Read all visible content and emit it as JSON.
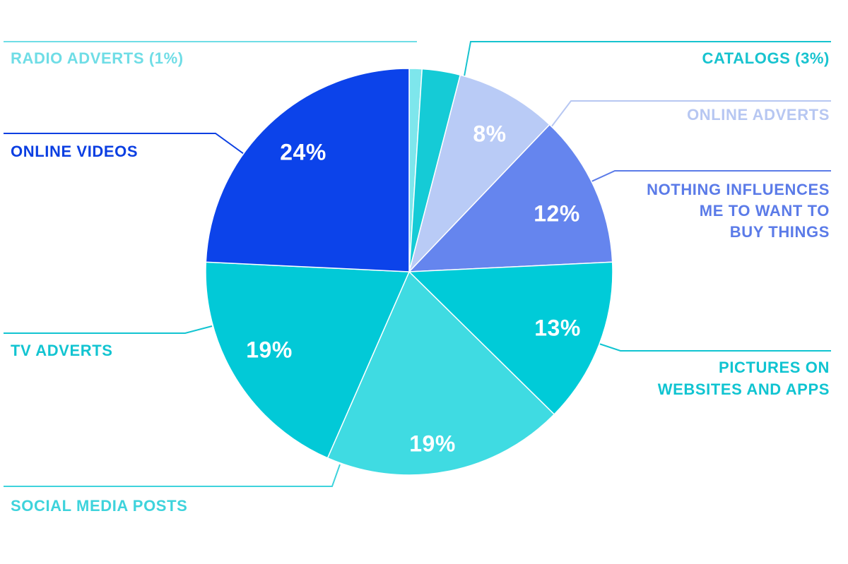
{
  "chart_data": {
    "type": "pie",
    "title": "",
    "start": "12 o'clock",
    "direction": "clockwise",
    "slices": [
      {
        "name": "RADIO ADVERTS (1%)",
        "lines": [
          "RADIO ADVERTS (1%)"
        ],
        "value": 1,
        "value_label": "",
        "color": "#7ee6ec"
      },
      {
        "name": "CATALOGS (3%)",
        "lines": [
          "CATALOGS (3%)"
        ],
        "value": 3,
        "value_label": "",
        "color": "#15cbd6"
      },
      {
        "name": "ONLINE ADVERTS",
        "lines": [
          "ONLINE ADVERTS"
        ],
        "value": 8,
        "value_label": "8%",
        "color": "#b9cbf6"
      },
      {
        "name": "NOTHING INFLUENCES ME TO WANT TO BUY THINGS",
        "lines": [
          "NOTHING INFLUENCES",
          "ME TO WANT TO",
          "BUY THINGS"
        ],
        "value": 12,
        "value_label": "12%",
        "color": "#6585ee"
      },
      {
        "name": "PICTURES ON WEBSITES AND APPS",
        "lines": [
          "PICTURES ON",
          "WEBSITES AND APPS"
        ],
        "value": 13,
        "value_label": "13%",
        "color": "#00cbd8"
      },
      {
        "name": "SOCIAL MEDIA POSTS",
        "lines": [
          "SOCIAL MEDIA POSTS"
        ],
        "value": 19,
        "value_label": "19%",
        "color": "#3fdbe2"
      },
      {
        "name": "TV ADVERTS",
        "lines": [
          "TV ADVERTS"
        ],
        "value": 19,
        "value_label": "19%",
        "color": "#02c9d7"
      },
      {
        "name": "ONLINE VIDEOS",
        "lines": [
          "ONLINE VIDEOS"
        ],
        "value": 24,
        "value_label": "24%",
        "color": "#0c43ea"
      }
    ],
    "label_colors": {
      "RADIO ADVERTS (1%)": "#6fdde6",
      "CATALOGS (3%)": "#17c3cf",
      "ONLINE ADVERTS": "#b7c7f2",
      "NOTHING INFLUENCES ME TO WANT TO BUY THINGS": "#5b7be8",
      "PICTURES ON WEBSITES AND APPS": "#10c4d1",
      "SOCIAL MEDIA POSTS": "#3ed3dc",
      "TV ADVERTS": "#12c4d1",
      "ONLINE VIDEOS": "#0b3fe2"
    }
  }
}
